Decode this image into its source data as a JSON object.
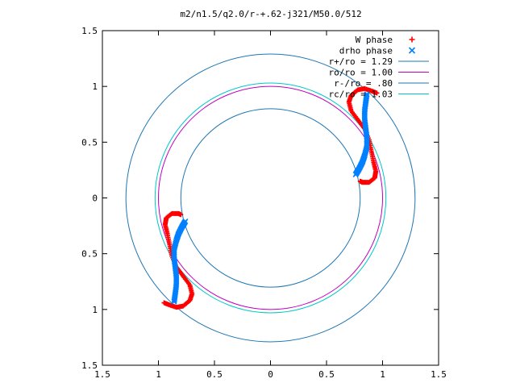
{
  "chart_data": {
    "type": "scatter",
    "title": "m2/n1.5/q2.0/r-+.62-j321/M50.0/512",
    "xlabel": "",
    "ylabel": "",
    "xlim": [
      -1.5,
      1.5
    ],
    "ylim": [
      -1.5,
      1.5
    ],
    "x_ticks": [
      "1.5",
      "1",
      "0.5",
      "0",
      "0.5",
      "1",
      "1.5"
    ],
    "y_ticks": [
      "1.5",
      "1",
      "0.5",
      "0",
      "0.5",
      "1",
      "1.5"
    ],
    "x_tick_values": [
      -1.5,
      -1.0,
      -0.5,
      0.0,
      0.5,
      1.0,
      1.5
    ],
    "y_tick_values": [
      1.5,
      1.0,
      0.5,
      0.0,
      -0.5,
      -1.0,
      -1.5
    ],
    "grid": false,
    "legend_position": "top-right",
    "series": [
      {
        "name": "W phase",
        "marker": "plus",
        "color": "#ff0000",
        "points": [
          [
            0.95,
            0.94
          ],
          [
            0.9,
            0.96
          ],
          [
            0.84,
            0.98
          ],
          [
            0.78,
            0.97
          ],
          [
            0.72,
            0.92
          ],
          [
            0.7,
            0.86
          ],
          [
            0.72,
            0.78
          ],
          [
            0.78,
            0.7
          ],
          [
            0.84,
            0.62
          ],
          [
            0.88,
            0.52
          ],
          [
            0.9,
            0.42
          ],
          [
            0.92,
            0.32
          ],
          [
            0.94,
            0.24
          ],
          [
            0.93,
            0.18
          ],
          [
            0.88,
            0.14
          ],
          [
            0.82,
            0.14
          ],
          [
            0.8,
            0.15
          ],
          [
            -0.95,
            -0.94
          ],
          [
            -0.9,
            -0.96
          ],
          [
            -0.84,
            -0.98
          ],
          [
            -0.78,
            -0.97
          ],
          [
            -0.72,
            -0.92
          ],
          [
            -0.7,
            -0.86
          ],
          [
            -0.72,
            -0.78
          ],
          [
            -0.78,
            -0.7
          ],
          [
            -0.84,
            -0.62
          ],
          [
            -0.88,
            -0.52
          ],
          [
            -0.9,
            -0.42
          ],
          [
            -0.92,
            -0.32
          ],
          [
            -0.94,
            -0.24
          ],
          [
            -0.93,
            -0.18
          ],
          [
            -0.88,
            -0.14
          ],
          [
            -0.82,
            -0.14
          ],
          [
            -0.8,
            -0.15
          ]
        ]
      },
      {
        "name": "drho phase",
        "marker": "cross",
        "color": "#0080ff",
        "points": [
          [
            0.86,
            0.93
          ],
          [
            0.85,
            0.86
          ],
          [
            0.84,
            0.78
          ],
          [
            0.84,
            0.7
          ],
          [
            0.85,
            0.62
          ],
          [
            0.86,
            0.54
          ],
          [
            0.86,
            0.46
          ],
          [
            0.84,
            0.38
          ],
          [
            0.82,
            0.32
          ],
          [
            0.79,
            0.26
          ],
          [
            0.76,
            0.21
          ],
          [
            -0.86,
            -0.93
          ],
          [
            -0.85,
            -0.86
          ],
          [
            -0.84,
            -0.78
          ],
          [
            -0.84,
            -0.7
          ],
          [
            -0.85,
            -0.62
          ],
          [
            -0.86,
            -0.54
          ],
          [
            -0.86,
            -0.46
          ],
          [
            -0.84,
            -0.38
          ],
          [
            -0.82,
            -0.32
          ],
          [
            -0.79,
            -0.26
          ],
          [
            -0.76,
            -0.21
          ]
        ]
      }
    ],
    "circles": [
      {
        "name": "r+/ro = 1.29",
        "radius": 1.29,
        "color": "#1f77b4"
      },
      {
        "name": "ro/ro = 1.00",
        "radius": 1.0,
        "color": "#c000c0"
      },
      {
        "name": "r-/ro = .80",
        "radius": 0.8,
        "color": "#1f77b4"
      },
      {
        "name": "rc/ro = 1.03",
        "radius": 1.03,
        "color": "#00c8c8"
      }
    ]
  }
}
